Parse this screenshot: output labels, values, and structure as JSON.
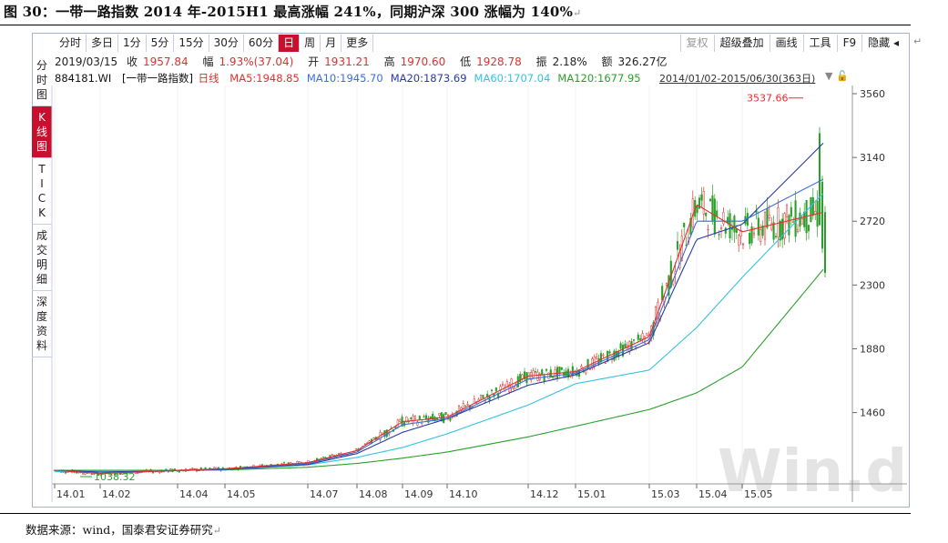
{
  "figure": {
    "title": "图 30：一带一路指数 2014 年-2015H1 最高涨幅 241%，同期沪深 300 涨幅为 140%",
    "source": "数据来源：wind，国泰君安证券研究",
    "pilcrow": "↵"
  },
  "toolbar": {
    "left": [
      "分时",
      "多日",
      "1分",
      "5分",
      "15分",
      "30分",
      "60分",
      "日",
      "周",
      "月",
      "更多"
    ],
    "active": "日",
    "right": [
      "复权",
      "超级叠加",
      "画线",
      "工具",
      "F9",
      "隐藏"
    ],
    "right_dim": "复权"
  },
  "sidebar": {
    "items": [
      "分\n时\n图",
      "K\n线\n图",
      "T\nI\nC\nK",
      "成\n交\n明\n细",
      "深\n度\n资\n料"
    ],
    "active_index": 1
  },
  "info": {
    "date": "2019/03/15",
    "close_label": "收",
    "close": "1957.84",
    "change_label": "幅",
    "change": "1.93%(37.04)",
    "open_label": "开",
    "open": "1931.21",
    "high_label": "高",
    "high": "1970.60",
    "low_label": "低",
    "low": "1928.78",
    "amp_label": "振",
    "amp": "2.18%",
    "amt_label": "额",
    "amt": "326.27亿"
  },
  "ma_legend": {
    "code": "884181.WI",
    "name": "[一带一路指数]",
    "period": "日线",
    "items": [
      {
        "label": "MA5:1948.85",
        "color": "#e03030"
      },
      {
        "label": "MA10:1945.70",
        "color": "#3a6fd8"
      },
      {
        "label": "MA20:1873.69",
        "color": "#2a3aa8"
      },
      {
        "label": "MA60:1707.04",
        "color": "#33c3e0"
      },
      {
        "label": "MA120:1677.95",
        "color": "#2aa02a"
      }
    ],
    "range": "2014/01/02-2015/06/30(363日)"
  },
  "chart_data": {
    "type": "line",
    "y_ticks": [
      3560,
      3140,
      2720,
      2300,
      1880,
      1460
    ],
    "x_ticks": [
      "14.01",
      "14.02",
      "14.04",
      "14.05",
      "14.07",
      "14.08",
      "14.09",
      "14.10",
      "14.12",
      "15.01",
      "15.03",
      "15.04",
      "15.05"
    ],
    "annotations": {
      "high": "3537.66",
      "low": "1038.32"
    },
    "watermark": "Win.d",
    "candle_colors": {
      "up": "#e03030",
      "down": "#2aa02a"
    },
    "series": [
      {
        "name": "MA120",
        "color": "#2aa02a",
        "points": [
          [
            "14.01",
            1080
          ],
          [
            "14.02",
            1080
          ],
          [
            "14.04",
            1080
          ],
          [
            "14.05",
            1082
          ],
          [
            "14.07",
            1100
          ],
          [
            "14.08",
            1125
          ],
          [
            "14.09",
            1160
          ],
          [
            "14.10",
            1200
          ],
          [
            "14.12",
            1300
          ],
          [
            "15.01",
            1370
          ],
          [
            "15.03",
            1480
          ],
          [
            "15.04",
            1590
          ],
          [
            "15.05",
            1760
          ],
          [
            "end",
            2410
          ]
        ]
      },
      {
        "name": "MA60",
        "color": "#33c3e0",
        "points": [
          [
            "14.01",
            1070
          ],
          [
            "14.02",
            1075
          ],
          [
            "14.04",
            1078
          ],
          [
            "14.05",
            1085
          ],
          [
            "14.07",
            1115
          ],
          [
            "14.08",
            1165
          ],
          [
            "14.09",
            1230
          ],
          [
            "14.10",
            1320
          ],
          [
            "14.12",
            1510
          ],
          [
            "15.01",
            1650
          ],
          [
            "15.03",
            1740
          ],
          [
            "15.04",
            2020
          ],
          [
            "15.05",
            2350
          ],
          [
            "end",
            2910
          ]
        ]
      },
      {
        "name": "MA20",
        "color": "#2a3aa8",
        "points": [
          [
            "14.01",
            1080
          ],
          [
            "14.02",
            1068
          ],
          [
            "14.04",
            1078
          ],
          [
            "14.05",
            1085
          ],
          [
            "14.07",
            1118
          ],
          [
            "14.08",
            1190
          ],
          [
            "14.09",
            1330
          ],
          [
            "14.10",
            1420
          ],
          [
            "14.12",
            1640
          ],
          [
            "15.01",
            1710
          ],
          [
            "15.03",
            1920
          ],
          [
            "15.04",
            2600
          ],
          [
            "15.05",
            2700
          ],
          [
            "end",
            3240
          ]
        ]
      },
      {
        "name": "MA10",
        "color": "#3a6fd8",
        "points": [
          [
            "14.01",
            1080
          ],
          [
            "14.02",
            1060
          ],
          [
            "14.04",
            1078
          ],
          [
            "14.05",
            1088
          ],
          [
            "14.07",
            1125
          ],
          [
            "14.08",
            1200
          ],
          [
            "14.09",
            1380
          ],
          [
            "14.10",
            1420
          ],
          [
            "14.12",
            1680
          ],
          [
            "15.01",
            1720
          ],
          [
            "15.03",
            1940
          ],
          [
            "15.04",
            2720
          ],
          [
            "15.05",
            2720
          ],
          [
            "end",
            3000
          ]
        ]
      },
      {
        "name": "MA5",
        "color": "#e03030",
        "points": [
          [
            "14.01",
            1080
          ],
          [
            "14.02",
            1058
          ],
          [
            "14.04",
            1080
          ],
          [
            "14.05",
            1090
          ],
          [
            "14.07",
            1130
          ],
          [
            "14.08",
            1210
          ],
          [
            "14.09",
            1400
          ],
          [
            "14.10",
            1430
          ],
          [
            "14.12",
            1700
          ],
          [
            "15.01",
            1730
          ],
          [
            "15.03",
            1960
          ],
          [
            "15.04",
            2830
          ],
          [
            "15.05",
            2650
          ],
          [
            "end",
            2780
          ]
        ]
      }
    ]
  }
}
